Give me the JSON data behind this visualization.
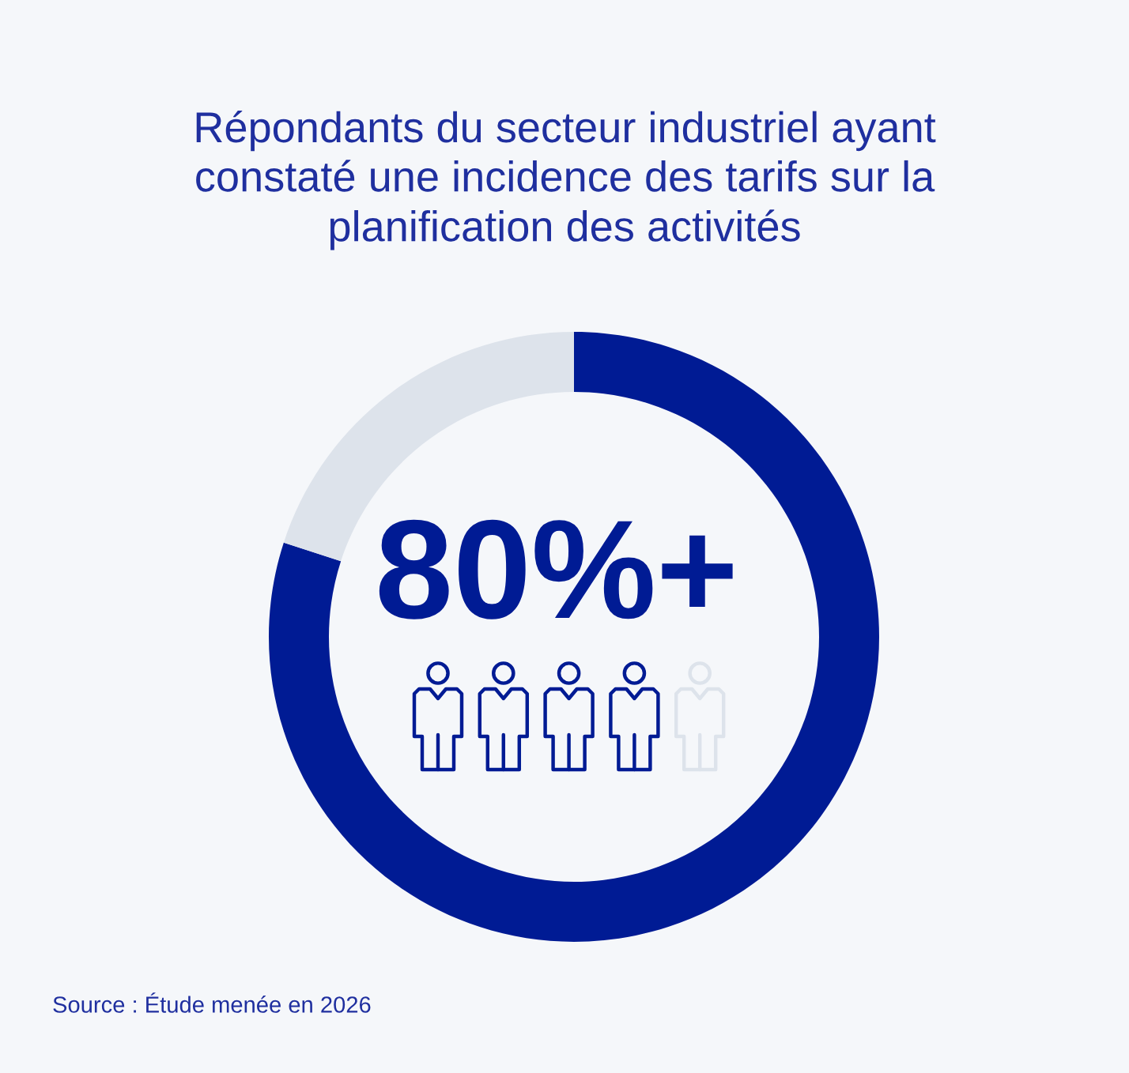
{
  "chart_data": {
    "type": "donut",
    "title": "Répondants du secteur industriel ayant\nconstaté une incidence des tarifs sur la\nplanification des activités",
    "categories": [
      null,
      null
    ],
    "values": [
      80,
      20
    ],
    "colors": [
      "#001b94",
      "#dde3eb"
    ],
    "annotations": [
      "80%+",
      "Source : Étude menée en 2026"
    ]
  }
}
